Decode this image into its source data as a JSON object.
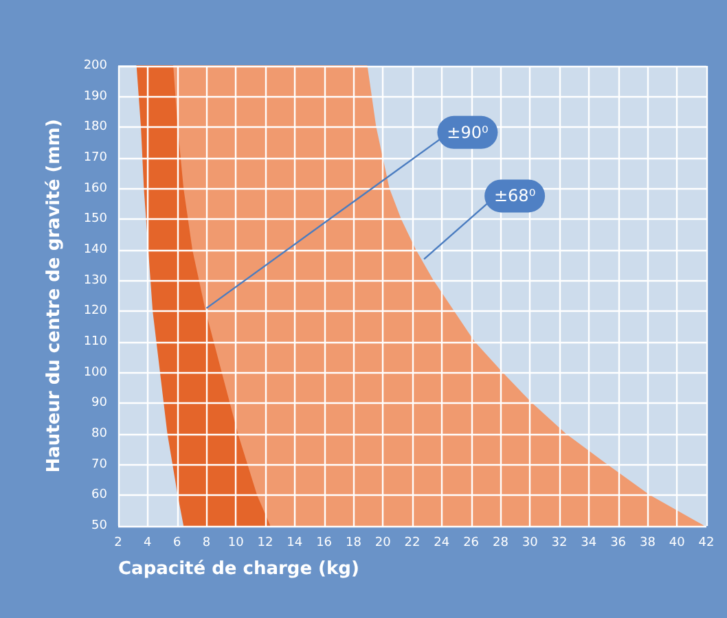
{
  "chart_data": {
    "type": "area",
    "xlabel": "Capacité de charge (kg)",
    "ylabel": "Hauteur du centre de gravité (mm)",
    "series": [
      {
        "color": "#f09a6f",
        "x": [
          2,
          18.9,
          19.5,
          20.4,
          21.2,
          22.2,
          23.4,
          24.8,
          26.2,
          28.1,
          30.1,
          32.4,
          35.2,
          38.1,
          41.8
        ],
        "values": [
          200,
          200,
          180,
          160,
          150,
          140,
          130,
          120,
          110,
          100,
          90,
          80,
          70,
          60,
          50
        ]
      },
      {
        "color": "#e4652a",
        "x": [
          2,
          5.7,
          6.0,
          6.4,
          7.0,
          7.9,
          9.0,
          10.1,
          11.4,
          12.3
        ],
        "values": [
          200,
          200,
          180,
          160,
          140,
          120,
          100,
          80,
          60,
          50
        ]
      },
      {
        "color": "#cddcec",
        "x": [
          2,
          3.2,
          3.5,
          3.7,
          4.0,
          4.3,
          4.8,
          5.3,
          6.0,
          6.4
        ],
        "values": [
          200,
          200,
          180,
          160,
          140,
          120,
          100,
          80,
          60,
          50
        ]
      }
    ],
    "annotations": [
      {
        "text": "±90⁰",
        "x": 8,
        "y": 121
      },
      {
        "text": "±68⁰",
        "x": 22.8,
        "y": 137
      }
    ],
    "xlim": [
      2,
      42
    ],
    "xticks": [
      2,
      4,
      6,
      8,
      10,
      12,
      14,
      16,
      18,
      20,
      22,
      24,
      26,
      28,
      30,
      32,
      34,
      36,
      38,
      40,
      42
    ],
    "ylim": [
      50,
      200
    ],
    "yticks": [
      50,
      60,
      70,
      80,
      90,
      100,
      110,
      120,
      130,
      140,
      150,
      160,
      170,
      180,
      190,
      200
    ],
    "grid": true
  }
}
